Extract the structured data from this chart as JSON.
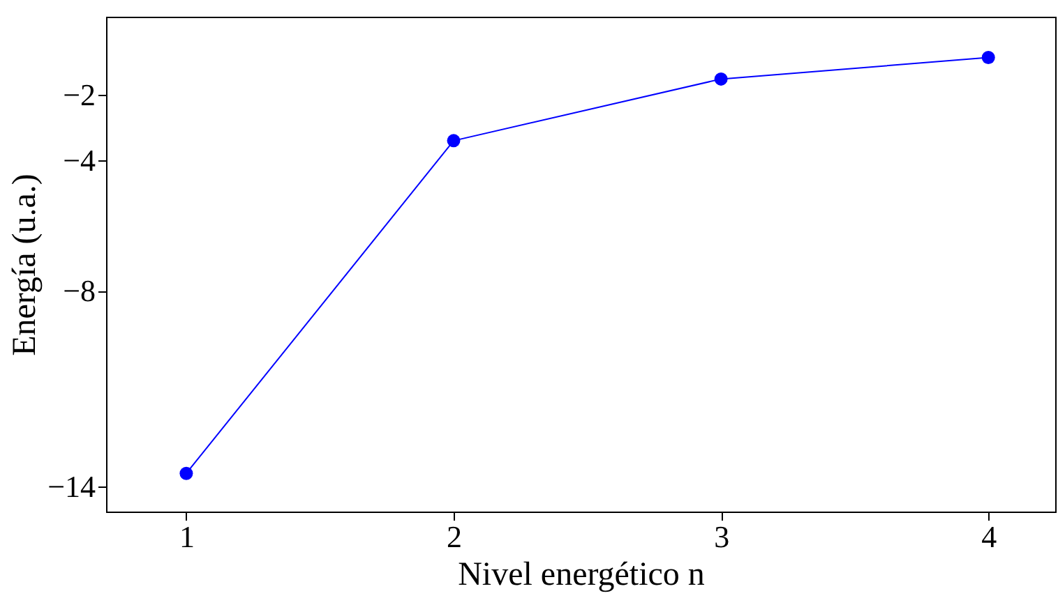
{
  "chart_data": {
    "type": "line",
    "xlabel": "Nivel energético n",
    "ylabel": "Energía (u.a.)",
    "x": [
      1,
      2,
      3,
      4
    ],
    "series": [
      {
        "color": "#0000ff",
        "values": [
          -13.6,
          -3.4,
          -1.51,
          -0.85
        ]
      }
    ],
    "xlim": [
      0.7,
      4.25
    ],
    "xticks": [
      1,
      2,
      3,
      4
    ],
    "ylim": [
      -14.77,
      0.4
    ],
    "yticks": [
      -14,
      -8,
      -4,
      -2
    ],
    "marker": "circle",
    "line_style": "solid",
    "grid": false,
    "legend": false
  }
}
